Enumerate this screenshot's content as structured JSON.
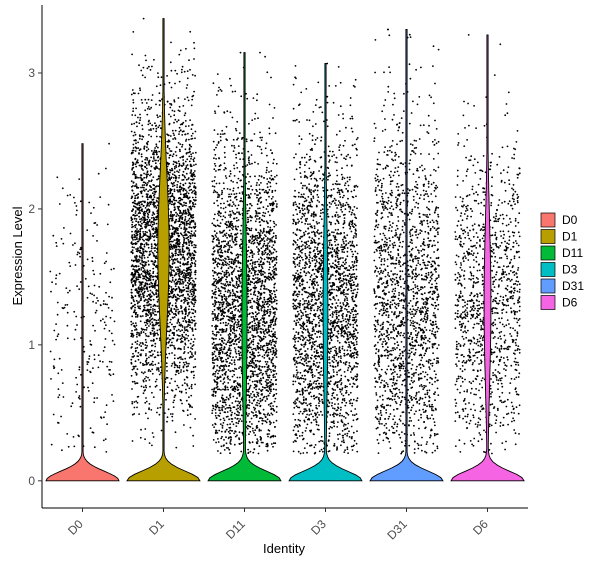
{
  "chart_data": {
    "type": "violin",
    "xlabel": "Identity",
    "ylabel": "Expression Level",
    "ylim": [
      -0.2,
      3.5
    ],
    "y_ticks": [
      0,
      1,
      2,
      3
    ],
    "categories": [
      "D0",
      "D1",
      "D11",
      "D3",
      "D31",
      "D6"
    ],
    "colors": {
      "D0": "#F8766D",
      "D1": "#B79F00",
      "D11": "#00BA38",
      "D3": "#00BFC4",
      "D31": "#619CFF",
      "D6": "#F564E3"
    },
    "series": [
      {
        "name": "D0",
        "max": 2.48,
        "zero_fraction": 0.97,
        "nonzero_mean": 1.1,
        "nonzero_sd": 0.7,
        "points": 230
      },
      {
        "name": "D1",
        "max": 3.4,
        "zero_fraction": 0.45,
        "nonzero_mean": 1.7,
        "nonzero_sd": 0.55,
        "points": 3200
      },
      {
        "name": "D11",
        "max": 3.15,
        "zero_fraction": 0.6,
        "nonzero_mean": 1.2,
        "nonzero_sd": 0.65,
        "points": 2800
      },
      {
        "name": "D3",
        "max": 3.07,
        "zero_fraction": 0.62,
        "nonzero_mean": 1.25,
        "nonzero_sd": 0.65,
        "points": 2400
      },
      {
        "name": "D31",
        "max": 3.32,
        "zero_fraction": 0.97,
        "nonzero_mean": 1.3,
        "nonzero_sd": 0.7,
        "points": 1750
      },
      {
        "name": "D6",
        "max": 3.28,
        "zero_fraction": 0.55,
        "nonzero_mean": 1.3,
        "nonzero_sd": 0.6,
        "points": 1150
      }
    ],
    "legend": {
      "position": "right",
      "entries": [
        "D0",
        "D1",
        "D11",
        "D3",
        "D31",
        "D6"
      ]
    },
    "grid": false
  }
}
